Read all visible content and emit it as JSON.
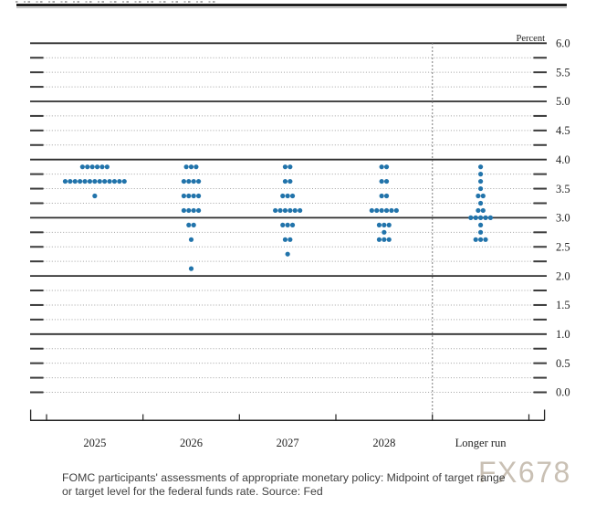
{
  "figure": {
    "unit_label": "Percent",
    "watermark": "FX678"
  },
  "caption": {
    "line1": "FOMC participants' assessments of appropriate monetary policy: Midpoint of target range",
    "line2": "or target level for the federal funds rate. Source: Fed"
  },
  "chart_data": {
    "type": "scatter",
    "title": "FOMC dot plot",
    "ylabel": "Percent",
    "ylim": [
      0.0,
      6.0
    ],
    "ytick_label_step": 0.5,
    "grid_minor_step": 0.25,
    "ytick_labels": [
      "6.0",
      "5.5",
      "5.0",
      "4.5",
      "4.0",
      "3.5",
      "3.0",
      "2.5",
      "2.0",
      "1.5",
      "1.0",
      "0.5",
      "0.0"
    ],
    "categories": [
      "2025",
      "2026",
      "2027",
      "2028",
      "Longer run"
    ],
    "separator_before_category": "Longer run",
    "dot_color": "#2274ab",
    "series": [
      {
        "category": "2025",
        "dots": [
          {
            "rate": 3.875,
            "count": 6
          },
          {
            "rate": 3.625,
            "count": 13
          },
          {
            "rate": 3.375,
            "count": 1
          }
        ]
      },
      {
        "category": "2026",
        "dots": [
          {
            "rate": 3.875,
            "count": 3
          },
          {
            "rate": 3.625,
            "count": 4
          },
          {
            "rate": 3.375,
            "count": 4
          },
          {
            "rate": 3.125,
            "count": 4
          },
          {
            "rate": 2.875,
            "count": 2
          },
          {
            "rate": 2.625,
            "count": 1
          },
          {
            "rate": 2.125,
            "count": 1
          }
        ]
      },
      {
        "category": "2027",
        "dots": [
          {
            "rate": 3.875,
            "count": 2
          },
          {
            "rate": 3.625,
            "count": 2
          },
          {
            "rate": 3.375,
            "count": 3
          },
          {
            "rate": 3.125,
            "count": 6
          },
          {
            "rate": 2.875,
            "count": 3
          },
          {
            "rate": 2.625,
            "count": 2
          },
          {
            "rate": 2.375,
            "count": 1
          }
        ]
      },
      {
        "category": "2028",
        "dots": [
          {
            "rate": 3.875,
            "count": 2
          },
          {
            "rate": 3.625,
            "count": 2
          },
          {
            "rate": 3.375,
            "count": 2
          },
          {
            "rate": 3.125,
            "count": 6
          },
          {
            "rate": 2.875,
            "count": 3
          },
          {
            "rate": 2.75,
            "count": 1
          },
          {
            "rate": 2.625,
            "count": 3
          }
        ]
      },
      {
        "category": "Longer run",
        "dots": [
          {
            "rate": 3.875,
            "count": 1
          },
          {
            "rate": 3.75,
            "count": 1
          },
          {
            "rate": 3.625,
            "count": 1
          },
          {
            "rate": 3.5,
            "count": 1
          },
          {
            "rate": 3.375,
            "count": 2
          },
          {
            "rate": 3.25,
            "count": 1
          },
          {
            "rate": 3.125,
            "count": 2
          },
          {
            "rate": 3.0,
            "count": 5
          },
          {
            "rate": 2.875,
            "count": 1
          },
          {
            "rate": 2.75,
            "count": 1
          },
          {
            "rate": 2.625,
            "count": 3
          }
        ]
      }
    ]
  }
}
